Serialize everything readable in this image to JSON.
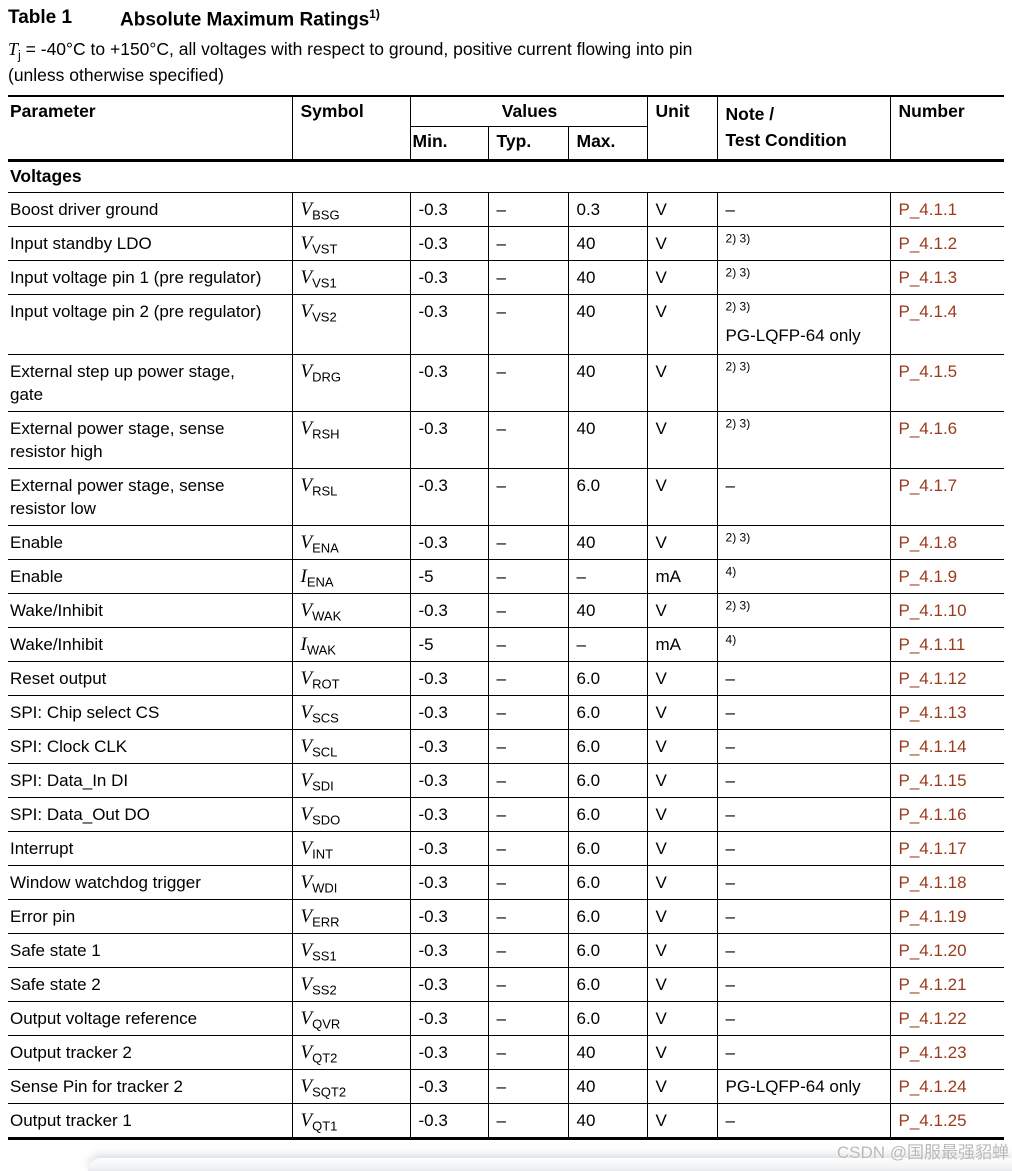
{
  "page": {
    "caption_label": "Table 1",
    "caption_title": "Absolute Maximum Ratings",
    "caption_footnote_ref": "1)",
    "cond_symbol": "T",
    "cond_symbol_sub": "j",
    "cond_line1_rest": " = -40°C to +150°C, all voltages with respect to ground, positive current flowing into pin",
    "cond_line2": "(unless otherwise specified)"
  },
  "table": {
    "headers": {
      "parameter": "Parameter",
      "symbol": "Symbol",
      "values": "Values",
      "min": "Min.",
      "typ": "Typ.",
      "max": "Max.",
      "unit": "Unit",
      "note_line1": "Note /",
      "note_line2": "Test Condition",
      "number": "Number"
    },
    "section_label": "Voltages",
    "rows": [
      {
        "parameter": "Boost driver ground",
        "sym": "V",
        "sub": "BSG",
        "min": "-0.3",
        "typ": "–",
        "max": "0.3",
        "unit": "V",
        "note_sup": "",
        "note_plain": "–",
        "note_line2": "",
        "number": "P_4.1.1"
      },
      {
        "parameter": "Input standby LDO",
        "sym": "V",
        "sub": "VST",
        "min": "-0.3",
        "typ": "–",
        "max": "40",
        "unit": "V",
        "note_sup": "2) 3)",
        "note_plain": "",
        "note_line2": "",
        "number": "P_4.1.2"
      },
      {
        "parameter": "Input voltage pin 1 (pre regulator)",
        "sym": "V",
        "sub": "VS1",
        "min": "-0.3",
        "typ": "–",
        "max": "40",
        "unit": "V",
        "note_sup": "2) 3)",
        "note_plain": "",
        "note_line2": "",
        "number": "P_4.1.3"
      },
      {
        "parameter": "Input voltage pin 2 (pre regulator)",
        "sym": "V",
        "sub": "VS2",
        "min": "-0.3",
        "typ": "–",
        "max": "40",
        "unit": "V",
        "note_sup": "2) 3)",
        "note_plain": "",
        "note_line2": "PG-LQFP-64 only",
        "number": "P_4.1.4"
      },
      {
        "parameter": "External step up power stage, gate",
        "sym": "V",
        "sub": "DRG",
        "min": "-0.3",
        "typ": "–",
        "max": "40",
        "unit": "V",
        "note_sup": "2) 3)",
        "note_plain": "",
        "note_line2": "",
        "number": "P_4.1.5"
      },
      {
        "parameter": "External power stage, sense resistor high",
        "sym": "V",
        "sub": "RSH",
        "min": "-0.3",
        "typ": "–",
        "max": "40",
        "unit": "V",
        "note_sup": "2) 3)",
        "note_plain": "",
        "note_line2": "",
        "number": "P_4.1.6"
      },
      {
        "parameter": "External power stage, sense resistor low",
        "sym": "V",
        "sub": "RSL",
        "min": "-0.3",
        "typ": "–",
        "max": "6.0",
        "unit": "V",
        "note_sup": "",
        "note_plain": "–",
        "note_line2": "",
        "number": "P_4.1.7"
      },
      {
        "parameter": "Enable",
        "sym": "V",
        "sub": "ENA",
        "min": "-0.3",
        "typ": "–",
        "max": "40",
        "unit": "V",
        "note_sup": "2) 3)",
        "note_plain": "",
        "note_line2": "",
        "number": "P_4.1.8"
      },
      {
        "parameter": "Enable",
        "sym": "I",
        "sub": "ENA",
        "min": "-5",
        "typ": "–",
        "max": "–",
        "unit": "mA",
        "note_sup": "4)",
        "note_plain": "",
        "note_line2": "",
        "number": "P_4.1.9"
      },
      {
        "parameter": "Wake/Inhibit",
        "sym": "V",
        "sub": "WAK",
        "min": "-0.3",
        "typ": "–",
        "max": "40",
        "unit": "V",
        "note_sup": "2) 3)",
        "note_plain": "",
        "note_line2": "",
        "number": "P_4.1.10"
      },
      {
        "parameter": "Wake/Inhibit",
        "sym": "I",
        "sub": "WAK",
        "min": "-5",
        "typ": "–",
        "max": "–",
        "unit": "mA",
        "note_sup": "4)",
        "note_plain": "",
        "note_line2": "",
        "number": "P_4.1.11"
      },
      {
        "parameter": "Reset output",
        "sym": "V",
        "sub": "ROT",
        "min": "-0.3",
        "typ": "–",
        "max": "6.0",
        "unit": "V",
        "note_sup": "",
        "note_plain": "–",
        "note_line2": "",
        "number": "P_4.1.12"
      },
      {
        "parameter": "SPI: Chip select CS",
        "sym": "V",
        "sub": "SCS",
        "min": "-0.3",
        "typ": "–",
        "max": "6.0",
        "unit": "V",
        "note_sup": "",
        "note_plain": "–",
        "note_line2": "",
        "number": "P_4.1.13"
      },
      {
        "parameter": "SPI: Clock CLK",
        "sym": "V",
        "sub": "SCL",
        "min": "-0.3",
        "typ": "–",
        "max": "6.0",
        "unit": "V",
        "note_sup": "",
        "note_plain": "–",
        "note_line2": "",
        "number": "P_4.1.14"
      },
      {
        "parameter": "SPI: Data_In DI",
        "sym": "V",
        "sub": "SDI",
        "min": "-0.3",
        "typ": "–",
        "max": "6.0",
        "unit": "V",
        "note_sup": "",
        "note_plain": "–",
        "note_line2": "",
        "number": "P_4.1.15"
      },
      {
        "parameter": "SPI: Data_Out DO",
        "sym": "V",
        "sub": "SDO",
        "min": "-0.3",
        "typ": "–",
        "max": "6.0",
        "unit": "V",
        "note_sup": "",
        "note_plain": "–",
        "note_line2": "",
        "number": "P_4.1.16"
      },
      {
        "parameter": "Interrupt",
        "sym": "V",
        "sub": "INT",
        "min": "-0.3",
        "typ": "–",
        "max": "6.0",
        "unit": "V",
        "note_sup": "",
        "note_plain": "–",
        "note_line2": "",
        "number": "P_4.1.17"
      },
      {
        "parameter": "Window watchdog trigger",
        "sym": "V",
        "sub": "WDI",
        "min": "-0.3",
        "typ": "–",
        "max": "6.0",
        "unit": "V",
        "note_sup": "",
        "note_plain": "–",
        "note_line2": "",
        "number": "P_4.1.18"
      },
      {
        "parameter": "Error pin",
        "sym": "V",
        "sub": "ERR",
        "min": "-0.3",
        "typ": "–",
        "max": "6.0",
        "unit": "V",
        "note_sup": "",
        "note_plain": "–",
        "note_line2": "",
        "number": "P_4.1.19"
      },
      {
        "parameter": "Safe state 1",
        "sym": "V",
        "sub": "SS1",
        "min": "-0.3",
        "typ": "–",
        "max": "6.0",
        "unit": "V",
        "note_sup": "",
        "note_plain": "–",
        "note_line2": "",
        "number": "P_4.1.20"
      },
      {
        "parameter": "Safe state 2",
        "sym": "V",
        "sub": "SS2",
        "min": "-0.3",
        "typ": "–",
        "max": "6.0",
        "unit": "V",
        "note_sup": "",
        "note_plain": "–",
        "note_line2": "",
        "number": "P_4.1.21"
      },
      {
        "parameter": "Output voltage reference",
        "sym": "V",
        "sub": "QVR",
        "min": "-0.3",
        "typ": "–",
        "max": "6.0",
        "unit": "V",
        "note_sup": "",
        "note_plain": "–",
        "note_line2": "",
        "number": "P_4.1.22"
      },
      {
        "parameter": "Output tracker 2",
        "sym": "V",
        "sub": "QT2",
        "min": "-0.3",
        "typ": "–",
        "max": "40",
        "unit": "V",
        "note_sup": "",
        "note_plain": "–",
        "note_line2": "",
        "number": "P_4.1.23"
      },
      {
        "parameter": "Sense Pin for tracker 2",
        "sym": "V",
        "sub": "SQT2",
        "min": "-0.3",
        "typ": "–",
        "max": "40",
        "unit": "V",
        "note_sup": "",
        "note_plain": "PG-LQFP-64 only",
        "note_line2": "",
        "number": "P_4.1.24"
      },
      {
        "parameter": "Output tracker 1",
        "sym": "V",
        "sub": "QT1",
        "min": "-0.3",
        "typ": "–",
        "max": "40",
        "unit": "V",
        "note_sup": "",
        "note_plain": "–",
        "note_line2": "",
        "number": "P_4.1.25"
      }
    ]
  },
  "watermark_text": "CSDN @国服最强貂蝉",
  "colors": {
    "number_link": "#9b3a1d",
    "watermark": "#b9b9b9",
    "text": "#000000"
  }
}
